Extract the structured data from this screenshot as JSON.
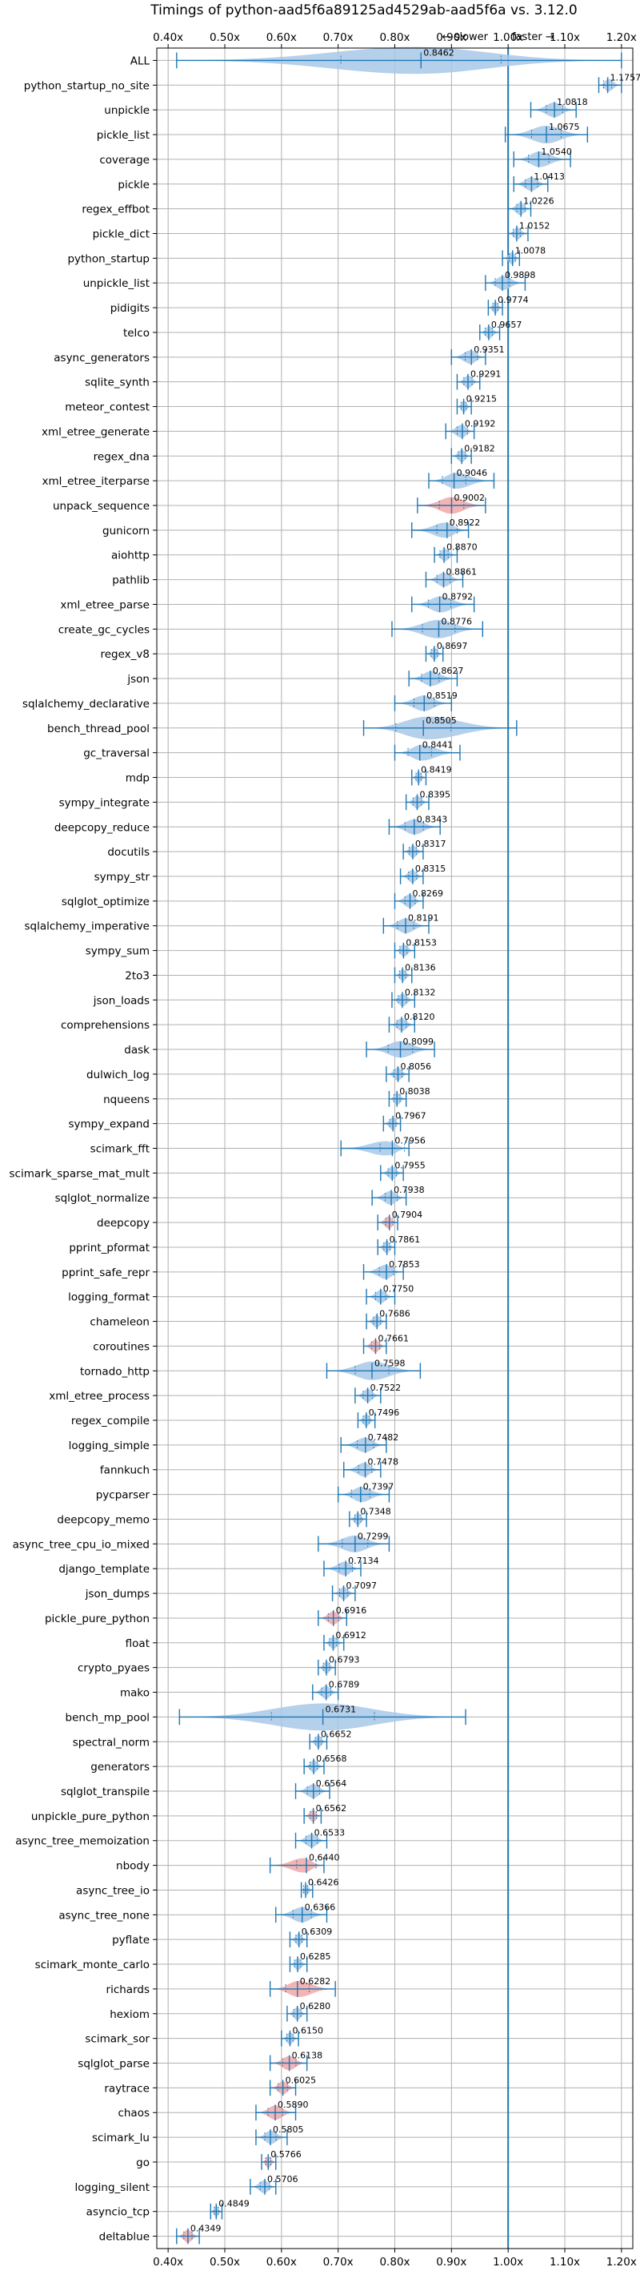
{
  "chart_data": {
    "type": "violin",
    "title": "Timings of python-aad5f6a89125ad4529ab-aad5f6a vs. 3.12.0",
    "xlim": [
      0.38,
      1.22
    ],
    "xticks": [
      0.4,
      0.5,
      0.6,
      0.7,
      0.8,
      0.9,
      1.0,
      1.1,
      1.2
    ],
    "xtick_labels": [
      "0.40x",
      "0.50x",
      "0.60x",
      "0.70x",
      "0.80x",
      "0.90x",
      "1.00x",
      "1.10x",
      "1.20x"
    ],
    "reference_line": 1.0,
    "grid": true,
    "annotation": {
      "slower": "← slower",
      "faster": "faster →"
    },
    "colors": {
      "normal": "#a8c8e6",
      "slow": "#f2a7a7",
      "line": "#1f77b4",
      "grid": "#b0b0b0"
    },
    "benchmarks": [
      {
        "name": "ALL",
        "value": 0.8462,
        "lo": 0.415,
        "hi": 1.2,
        "label": "0.8462",
        "highlight": false
      },
      {
        "name": "python_startup_no_site",
        "value": 1.1757,
        "lo": 1.16,
        "hi": 1.2,
        "label": "1.1757",
        "highlight": false
      },
      {
        "name": "unpickle",
        "value": 1.0818,
        "lo": 1.04,
        "hi": 1.12,
        "label": "1.0818",
        "highlight": false
      },
      {
        "name": "pickle_list",
        "value": 1.0675,
        "lo": 0.995,
        "hi": 1.14,
        "label": "1.0675",
        "highlight": false
      },
      {
        "name": "coverage",
        "value": 1.054,
        "lo": 1.01,
        "hi": 1.11,
        "label": "1.0540",
        "highlight": false
      },
      {
        "name": "pickle",
        "value": 1.0413,
        "lo": 1.01,
        "hi": 1.07,
        "label": "1.0413",
        "highlight": false
      },
      {
        "name": "regex_effbot",
        "value": 1.0226,
        "lo": 1.0,
        "hi": 1.04,
        "label": "1.0226",
        "highlight": false
      },
      {
        "name": "pickle_dict",
        "value": 1.0152,
        "lo": 1.0,
        "hi": 1.035,
        "label": "1.0152",
        "highlight": false
      },
      {
        "name": "python_startup",
        "value": 1.0078,
        "lo": 0.99,
        "hi": 1.02,
        "label": "1.0078",
        "highlight": false
      },
      {
        "name": "unpickle_list",
        "value": 0.9898,
        "lo": 0.96,
        "hi": 1.03,
        "label": "0.9898",
        "highlight": false
      },
      {
        "name": "pidigits",
        "value": 0.9774,
        "lo": 0.965,
        "hi": 0.99,
        "label": "0.9774",
        "highlight": false
      },
      {
        "name": "telco",
        "value": 0.9657,
        "lo": 0.95,
        "hi": 0.985,
        "label": "0.9657",
        "highlight": false
      },
      {
        "name": "async_generators",
        "value": 0.9351,
        "lo": 0.9,
        "hi": 0.96,
        "label": "0.9351",
        "highlight": false
      },
      {
        "name": "sqlite_synth",
        "value": 0.9291,
        "lo": 0.91,
        "hi": 0.95,
        "label": "0.9291",
        "highlight": false
      },
      {
        "name": "meteor_contest",
        "value": 0.9215,
        "lo": 0.91,
        "hi": 0.935,
        "label": "0.9215",
        "highlight": false
      },
      {
        "name": "xml_etree_generate",
        "value": 0.9192,
        "lo": 0.89,
        "hi": 0.94,
        "label": "0.9192",
        "highlight": false
      },
      {
        "name": "regex_dna",
        "value": 0.9182,
        "lo": 0.9,
        "hi": 0.935,
        "label": "0.9182",
        "highlight": false
      },
      {
        "name": "xml_etree_iterparse",
        "value": 0.9046,
        "lo": 0.86,
        "hi": 0.975,
        "label": "0.9046",
        "highlight": false
      },
      {
        "name": "unpack_sequence",
        "value": 0.9002,
        "lo": 0.84,
        "hi": 0.96,
        "label": "0.9002",
        "highlight": true
      },
      {
        "name": "gunicorn",
        "value": 0.8922,
        "lo": 0.83,
        "hi": 0.93,
        "label": "0.8922",
        "highlight": false
      },
      {
        "name": "aiohttp",
        "value": 0.887,
        "lo": 0.87,
        "hi": 0.91,
        "label": "0.8870",
        "highlight": false
      },
      {
        "name": "pathlib",
        "value": 0.8861,
        "lo": 0.855,
        "hi": 0.92,
        "label": "0.8861",
        "highlight": false
      },
      {
        "name": "xml_etree_parse",
        "value": 0.8792,
        "lo": 0.83,
        "hi": 0.94,
        "label": "0.8792",
        "highlight": false
      },
      {
        "name": "create_gc_cycles",
        "value": 0.8776,
        "lo": 0.795,
        "hi": 0.955,
        "label": "0.8776",
        "highlight": false
      },
      {
        "name": "regex_v8",
        "value": 0.8697,
        "lo": 0.855,
        "hi": 0.885,
        "label": "0.8697",
        "highlight": false
      },
      {
        "name": "json",
        "value": 0.8627,
        "lo": 0.825,
        "hi": 0.91,
        "label": "0.8627",
        "highlight": false
      },
      {
        "name": "sqlalchemy_declarative",
        "value": 0.8519,
        "lo": 0.8,
        "hi": 0.9,
        "label": "0.8519",
        "highlight": false
      },
      {
        "name": "bench_thread_pool",
        "value": 0.8505,
        "lo": 0.745,
        "hi": 1.015,
        "label": "0.8505",
        "highlight": false
      },
      {
        "name": "gc_traversal",
        "value": 0.8441,
        "lo": 0.8,
        "hi": 0.915,
        "label": "0.8441",
        "highlight": false
      },
      {
        "name": "mdp",
        "value": 0.8419,
        "lo": 0.83,
        "hi": 0.855,
        "label": "0.8419",
        "highlight": false
      },
      {
        "name": "sympy_integrate",
        "value": 0.8395,
        "lo": 0.82,
        "hi": 0.86,
        "label": "0.8395",
        "highlight": false
      },
      {
        "name": "deepcopy_reduce",
        "value": 0.8343,
        "lo": 0.79,
        "hi": 0.88,
        "label": "0.8343",
        "highlight": false
      },
      {
        "name": "docutils",
        "value": 0.8317,
        "lo": 0.815,
        "hi": 0.85,
        "label": "0.8317",
        "highlight": false
      },
      {
        "name": "sympy_str",
        "value": 0.8315,
        "lo": 0.81,
        "hi": 0.85,
        "label": "0.8315",
        "highlight": false
      },
      {
        "name": "sqlglot_optimize",
        "value": 0.8269,
        "lo": 0.8,
        "hi": 0.85,
        "label": "0.8269",
        "highlight": false
      },
      {
        "name": "sqlalchemy_imperative",
        "value": 0.8191,
        "lo": 0.78,
        "hi": 0.86,
        "label": "0.8191",
        "highlight": false
      },
      {
        "name": "sympy_sum",
        "value": 0.8153,
        "lo": 0.8,
        "hi": 0.835,
        "label": "0.8153",
        "highlight": false
      },
      {
        "name": "2to3",
        "value": 0.8136,
        "lo": 0.8,
        "hi": 0.83,
        "label": "0.8136",
        "highlight": false
      },
      {
        "name": "json_loads",
        "value": 0.8132,
        "lo": 0.795,
        "hi": 0.835,
        "label": "0.8132",
        "highlight": false
      },
      {
        "name": "comprehensions",
        "value": 0.812,
        "lo": 0.79,
        "hi": 0.835,
        "label": "0.8120",
        "highlight": false
      },
      {
        "name": "dask",
        "value": 0.8099,
        "lo": 0.75,
        "hi": 0.87,
        "label": "0.8099",
        "highlight": false
      },
      {
        "name": "dulwich_log",
        "value": 0.8056,
        "lo": 0.785,
        "hi": 0.825,
        "label": "0.8056",
        "highlight": false
      },
      {
        "name": "nqueens",
        "value": 0.8038,
        "lo": 0.79,
        "hi": 0.82,
        "label": "0.8038",
        "highlight": false
      },
      {
        "name": "sympy_expand",
        "value": 0.7967,
        "lo": 0.78,
        "hi": 0.81,
        "label": "0.7967",
        "highlight": false
      },
      {
        "name": "scimark_fft",
        "value": 0.7956,
        "lo": 0.705,
        "hi": 0.825,
        "label": "0.7956",
        "highlight": false
      },
      {
        "name": "scimark_sparse_mat_mult",
        "value": 0.7955,
        "lo": 0.775,
        "hi": 0.815,
        "label": "0.7955",
        "highlight": false
      },
      {
        "name": "sqlglot_normalize",
        "value": 0.7938,
        "lo": 0.76,
        "hi": 0.82,
        "label": "0.7938",
        "highlight": false
      },
      {
        "name": "deepcopy",
        "value": 0.7904,
        "lo": 0.77,
        "hi": 0.805,
        "label": "0.7904",
        "highlight": true
      },
      {
        "name": "pprint_pformat",
        "value": 0.7861,
        "lo": 0.77,
        "hi": 0.8,
        "label": "0.7861",
        "highlight": false
      },
      {
        "name": "pprint_safe_repr",
        "value": 0.7853,
        "lo": 0.745,
        "hi": 0.815,
        "label": "0.7853",
        "highlight": false
      },
      {
        "name": "logging_format",
        "value": 0.775,
        "lo": 0.75,
        "hi": 0.8,
        "label": "0.7750",
        "highlight": false
      },
      {
        "name": "chameleon",
        "value": 0.7686,
        "lo": 0.75,
        "hi": 0.785,
        "label": "0.7686",
        "highlight": false
      },
      {
        "name": "coroutines",
        "value": 0.7661,
        "lo": 0.745,
        "hi": 0.785,
        "label": "0.7661",
        "highlight": true
      },
      {
        "name": "tornado_http",
        "value": 0.7598,
        "lo": 0.68,
        "hi": 0.845,
        "label": "0.7598",
        "highlight": false
      },
      {
        "name": "xml_etree_process",
        "value": 0.7522,
        "lo": 0.73,
        "hi": 0.775,
        "label": "0.7522",
        "highlight": false
      },
      {
        "name": "regex_compile",
        "value": 0.7496,
        "lo": 0.735,
        "hi": 0.765,
        "label": "0.7496",
        "highlight": false
      },
      {
        "name": "logging_simple",
        "value": 0.7482,
        "lo": 0.705,
        "hi": 0.785,
        "label": "0.7482",
        "highlight": false
      },
      {
        "name": "fannkuch",
        "value": 0.7478,
        "lo": 0.71,
        "hi": 0.775,
        "label": "0.7478",
        "highlight": false
      },
      {
        "name": "pycparser",
        "value": 0.7397,
        "lo": 0.7,
        "hi": 0.79,
        "label": "0.7397",
        "highlight": false
      },
      {
        "name": "deepcopy_memo",
        "value": 0.7348,
        "lo": 0.72,
        "hi": 0.75,
        "label": "0.7348",
        "highlight": false
      },
      {
        "name": "async_tree_cpu_io_mixed",
        "value": 0.7299,
        "lo": 0.665,
        "hi": 0.79,
        "label": "0.7299",
        "highlight": false
      },
      {
        "name": "django_template",
        "value": 0.7134,
        "lo": 0.675,
        "hi": 0.74,
        "label": "0.7134",
        "highlight": false
      },
      {
        "name": "json_dumps",
        "value": 0.7097,
        "lo": 0.69,
        "hi": 0.73,
        "label": "0.7097",
        "highlight": false
      },
      {
        "name": "pickle_pure_python",
        "value": 0.6916,
        "lo": 0.665,
        "hi": 0.715,
        "label": "0.6916",
        "highlight": true
      },
      {
        "name": "float",
        "value": 0.6912,
        "lo": 0.675,
        "hi": 0.71,
        "label": "0.6912",
        "highlight": false
      },
      {
        "name": "crypto_pyaes",
        "value": 0.6793,
        "lo": 0.665,
        "hi": 0.695,
        "label": "0.6793",
        "highlight": false
      },
      {
        "name": "mako",
        "value": 0.6789,
        "lo": 0.655,
        "hi": 0.7,
        "label": "0.6789",
        "highlight": false
      },
      {
        "name": "bench_mp_pool",
        "value": 0.6731,
        "lo": 0.42,
        "hi": 0.925,
        "label": "0.6731",
        "highlight": false
      },
      {
        "name": "spectral_norm",
        "value": 0.6652,
        "lo": 0.65,
        "hi": 0.68,
        "label": "0.6652",
        "highlight": false
      },
      {
        "name": "generators",
        "value": 0.6568,
        "lo": 0.64,
        "hi": 0.675,
        "label": "0.6568",
        "highlight": false
      },
      {
        "name": "sqlglot_transpile",
        "value": 0.6564,
        "lo": 0.625,
        "hi": 0.685,
        "label": "0.6564",
        "highlight": false
      },
      {
        "name": "unpickle_pure_python",
        "value": 0.6562,
        "lo": 0.64,
        "hi": 0.67,
        "label": "0.6562",
        "highlight": true
      },
      {
        "name": "async_tree_memoization",
        "value": 0.6533,
        "lo": 0.625,
        "hi": 0.68,
        "label": "0.6533",
        "highlight": false
      },
      {
        "name": "nbody",
        "value": 0.644,
        "lo": 0.58,
        "hi": 0.675,
        "label": "0.6440",
        "highlight": true
      },
      {
        "name": "async_tree_io",
        "value": 0.6426,
        "lo": 0.635,
        "hi": 0.655,
        "label": "0.6426",
        "highlight": false
      },
      {
        "name": "async_tree_none",
        "value": 0.6366,
        "lo": 0.59,
        "hi": 0.68,
        "label": "0.6366",
        "highlight": false
      },
      {
        "name": "pyflate",
        "value": 0.6309,
        "lo": 0.615,
        "hi": 0.645,
        "label": "0.6309",
        "highlight": false
      },
      {
        "name": "scimark_monte_carlo",
        "value": 0.6285,
        "lo": 0.615,
        "hi": 0.645,
        "label": "0.6285",
        "highlight": false
      },
      {
        "name": "richards",
        "value": 0.6282,
        "lo": 0.58,
        "hi": 0.695,
        "label": "0.6282",
        "highlight": true
      },
      {
        "name": "hexiom",
        "value": 0.628,
        "lo": 0.61,
        "hi": 0.645,
        "label": "0.6280",
        "highlight": false
      },
      {
        "name": "scimark_sor",
        "value": 0.615,
        "lo": 0.6,
        "hi": 0.63,
        "label": "0.6150",
        "highlight": false
      },
      {
        "name": "sqlglot_parse",
        "value": 0.6138,
        "lo": 0.58,
        "hi": 0.645,
        "label": "0.6138",
        "highlight": true
      },
      {
        "name": "raytrace",
        "value": 0.6025,
        "lo": 0.58,
        "hi": 0.625,
        "label": "0.6025",
        "highlight": true
      },
      {
        "name": "chaos",
        "value": 0.589,
        "lo": 0.555,
        "hi": 0.625,
        "label": "0.5890",
        "highlight": true
      },
      {
        "name": "scimark_lu",
        "value": 0.5805,
        "lo": 0.555,
        "hi": 0.61,
        "label": "0.5805",
        "highlight": false
      },
      {
        "name": "go",
        "value": 0.5766,
        "lo": 0.565,
        "hi": 0.59,
        "label": "0.5766",
        "highlight": true
      },
      {
        "name": "logging_silent",
        "value": 0.5706,
        "lo": 0.545,
        "hi": 0.59,
        "label": "0.5706",
        "highlight": false
      },
      {
        "name": "asyncio_tcp",
        "value": 0.4849,
        "lo": 0.475,
        "hi": 0.495,
        "label": "0.4849",
        "highlight": false
      },
      {
        "name": "deltablue",
        "value": 0.4349,
        "lo": 0.415,
        "hi": 0.455,
        "label": "0.4349",
        "highlight": true
      }
    ]
  }
}
